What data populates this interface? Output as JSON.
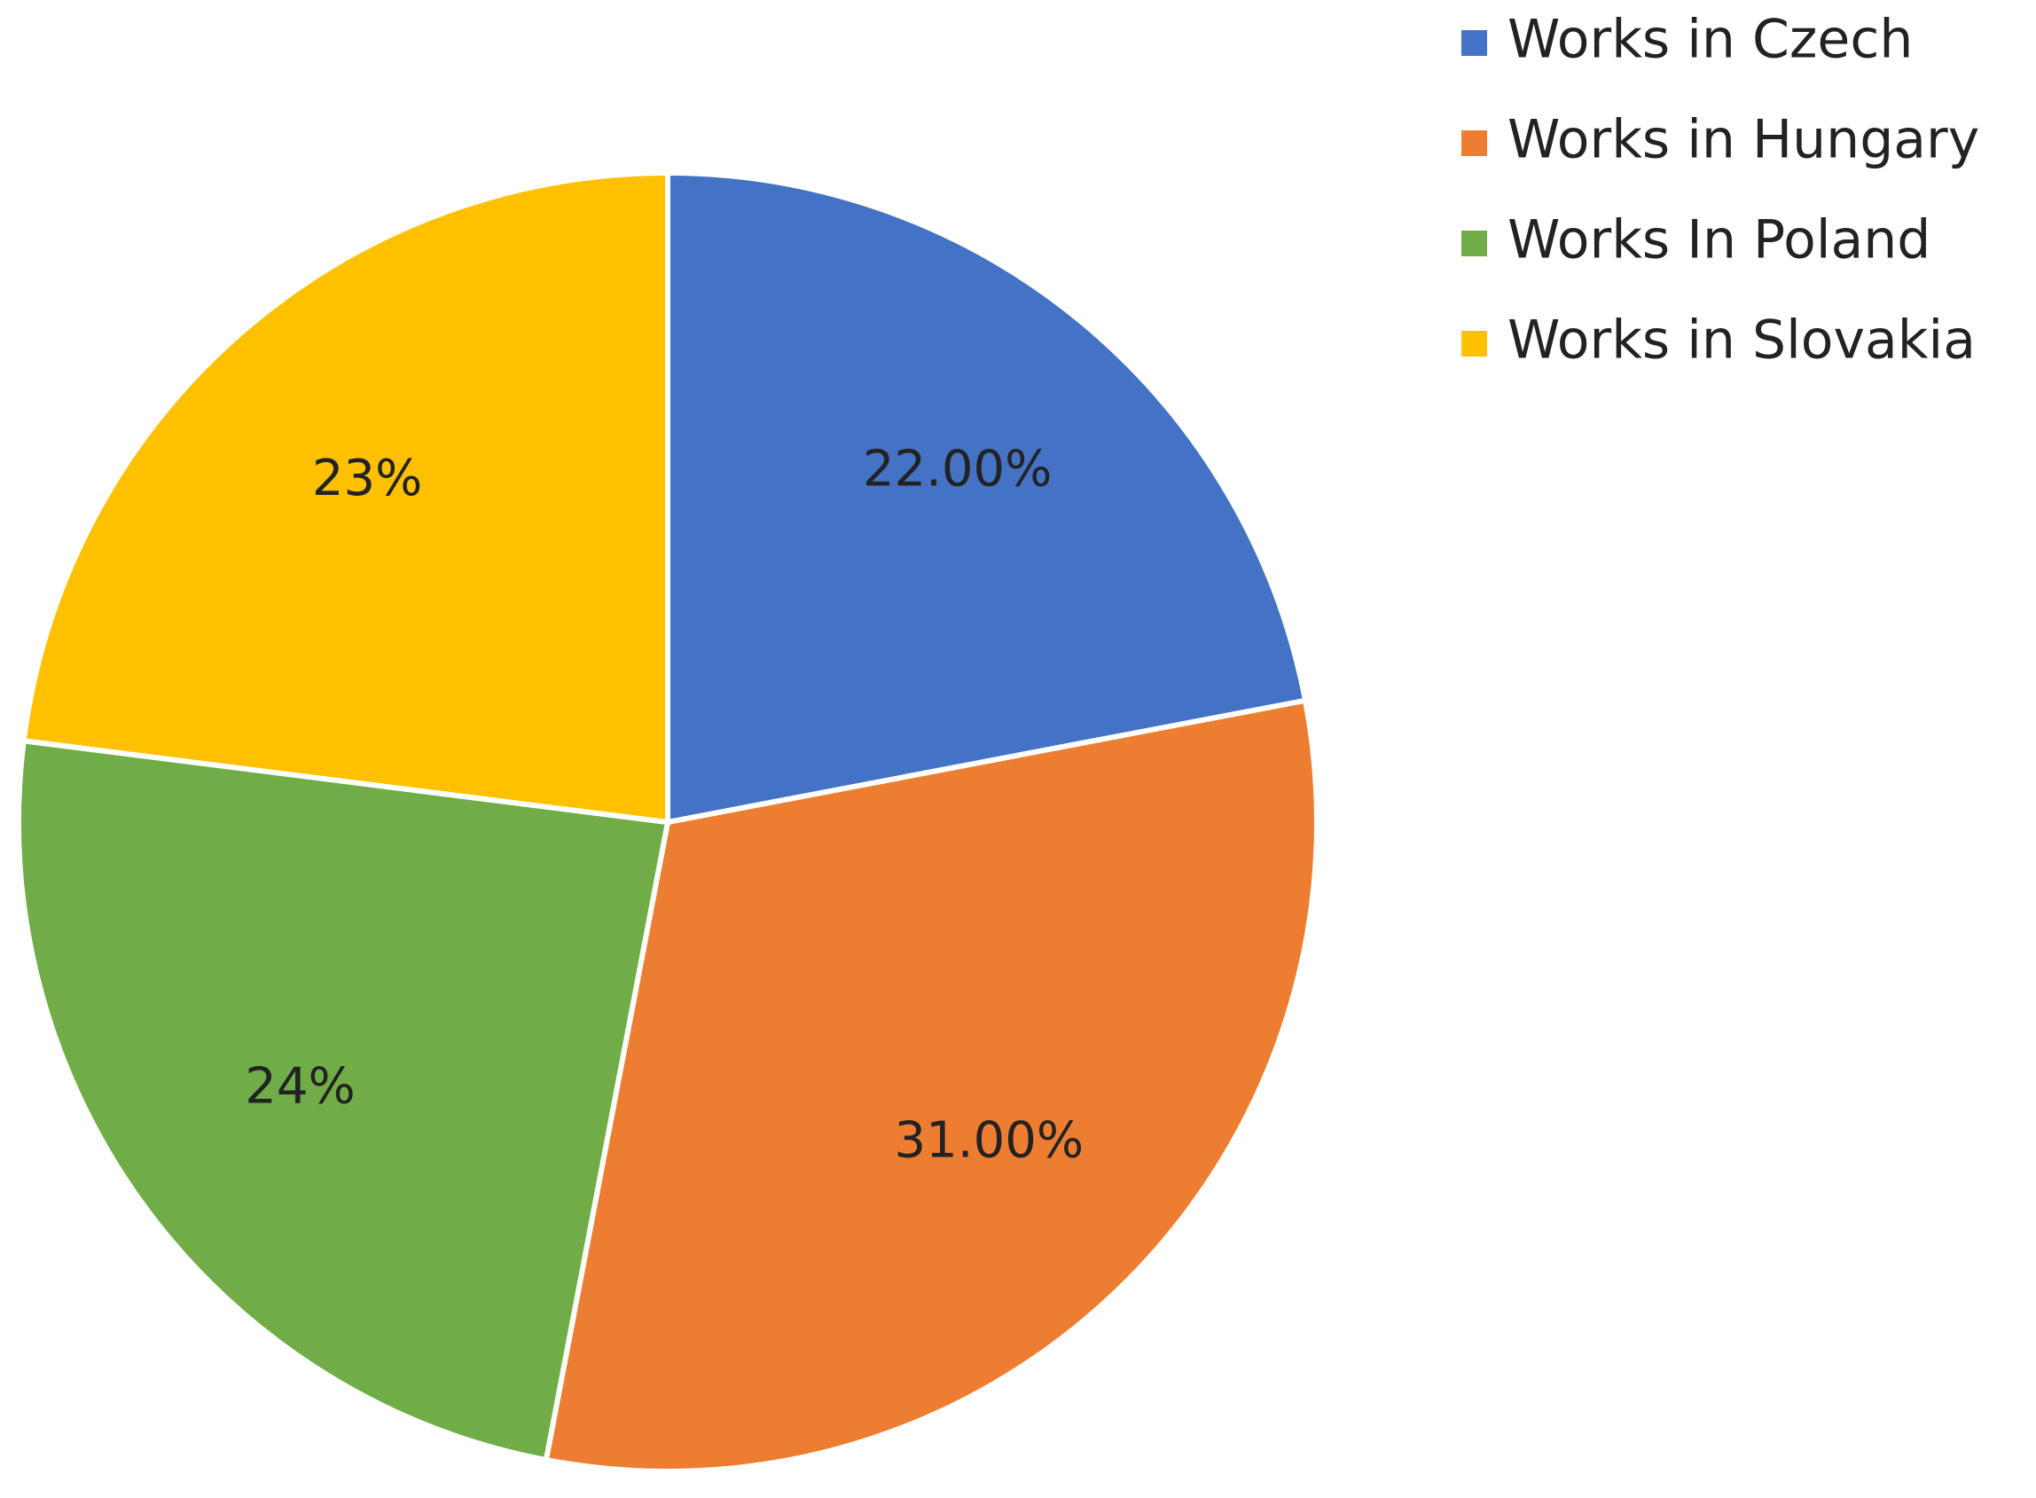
{
  "chart_data": {
    "type": "pie",
    "categories": [
      "Works in Czech",
      "Works in Hungary",
      "Works In Poland",
      "Works in Slovakia"
    ],
    "values": [
      22,
      31,
      24,
      23
    ],
    "value_labels": [
      "22.00%",
      "31.00%",
      "24%",
      "23%"
    ],
    "colors": [
      "#4472c4",
      "#ed7d31",
      "#70ad47",
      "#ffc000"
    ],
    "legend": "right"
  }
}
